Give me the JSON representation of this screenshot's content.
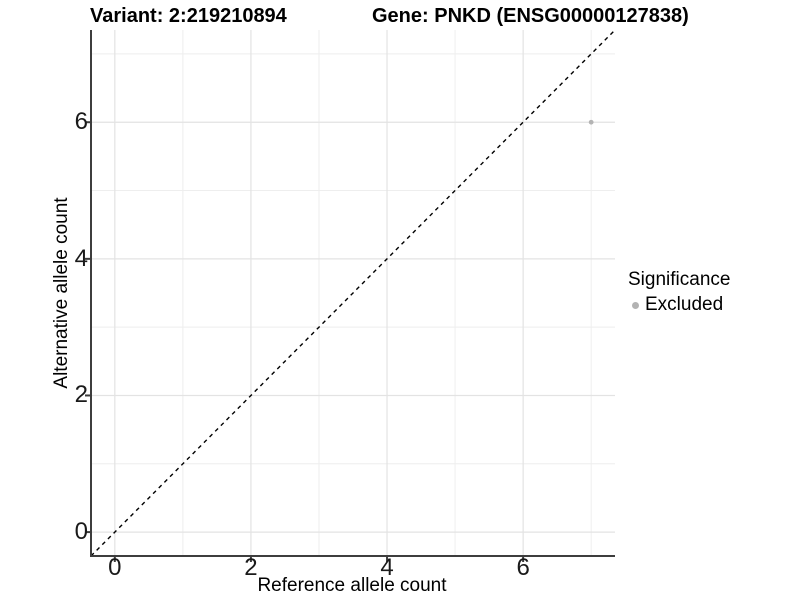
{
  "figure": {
    "title_left": "Variant: 2:219210894",
    "title_right": "Gene: PNKD (ENSG00000127838)"
  },
  "chart_data": {
    "type": "scatter",
    "title_left": "Variant: 2:219210894",
    "title_right": "Gene: PNKD (ENSG00000127838)",
    "xlabel": "Reference allele count",
    "ylabel": "Alternative allele count",
    "xlim": [
      -0.35,
      7.35
    ],
    "ylim": [
      -0.35,
      7.35
    ],
    "xticks": [
      0,
      2,
      4,
      6
    ],
    "yticks": [
      0,
      2,
      4,
      6
    ],
    "minor_gridlines_x": [
      1,
      3,
      5,
      7
    ],
    "minor_gridlines_y": [
      1,
      3,
      5,
      7
    ],
    "grid": true,
    "points": [
      {
        "x": 7,
        "y": 6,
        "significance": "Excluded"
      }
    ],
    "identity_line": {
      "slope": 1,
      "intercept": 0,
      "style": "dashed",
      "color": "#000000"
    },
    "legend": {
      "title": "Significance",
      "position": "right",
      "items": [
        {
          "label": "Excluded",
          "color": "#b3b3b3"
        }
      ]
    },
    "style": {
      "point_color": "#b4b4b4",
      "grid_major_color": "#e3e3e3",
      "grid_minor_color": "#eeeeee",
      "axis_line_color": "#3d3d3d",
      "background": "#ffffff"
    }
  }
}
